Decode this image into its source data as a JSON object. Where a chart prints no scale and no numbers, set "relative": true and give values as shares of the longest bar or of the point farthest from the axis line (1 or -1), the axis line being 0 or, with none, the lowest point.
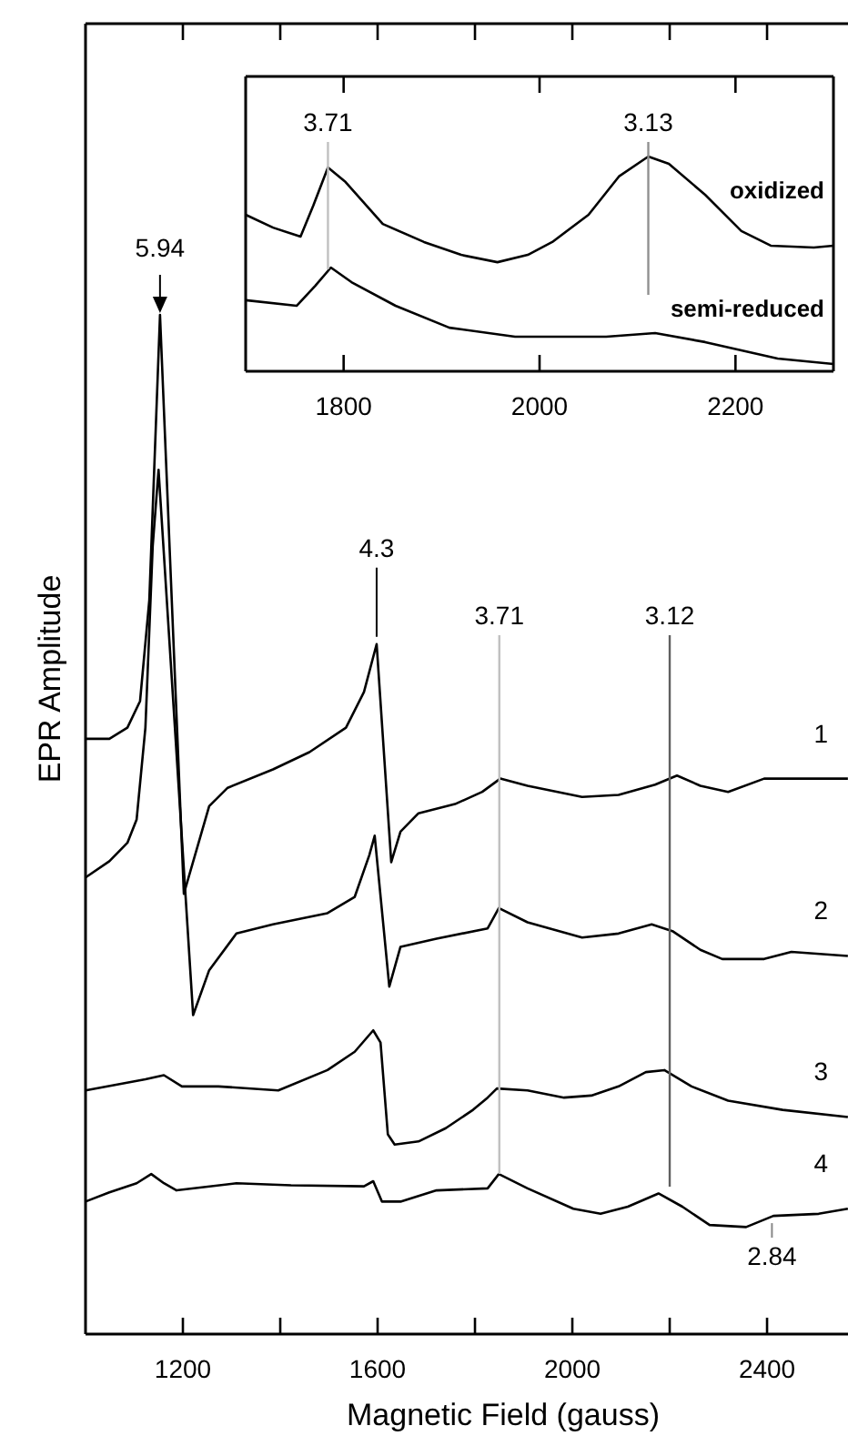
{
  "chart_data": [
    {
      "type": "line",
      "xlabel": "Magnetic Field (gauss)",
      "ylabel": "EPR Amplitude",
      "relative": true,
      "xlim": [
        1000,
        2570
      ],
      "xticks": [
        1200,
        {
          "value": 1400,
          "label": null
        },
        1600,
        {
          "value": 1800,
          "label": null
        },
        2000,
        {
          "value": 2200,
          "label": null
        },
        2400
      ],
      "grid": false,
      "series": [
        {
          "name": "1",
          "color": "#000000",
          "x": [
            1000,
            1049,
            1086,
            1112,
            1131,
            1153,
            1202,
            1254,
            1292,
            1385,
            1460,
            1535,
            1572,
            1598,
            1628,
            1647,
            1684,
            1759,
            1815,
            1852,
            1908,
            2020,
            2095,
            2170,
            2215,
            2263,
            2320,
            2394,
            2566
          ],
          "values": [
            0.584,
            0.584,
            0.595,
            0.621,
            0.72,
            1.0,
            0.432,
            0.518,
            0.536,
            0.554,
            0.571,
            0.595,
            0.63,
            0.677,
            0.463,
            0.493,
            0.511,
            0.52,
            0.532,
            0.545,
            0.538,
            0.527,
            0.529,
            0.539,
            0.548,
            0.538,
            0.532,
            0.545,
            0.545
          ]
        },
        {
          "name": "2",
          "color": "#000000",
          "x": [
            1000,
            1049,
            1086,
            1105,
            1123,
            1138,
            1150,
            1221,
            1254,
            1310,
            1385,
            1497,
            1553,
            1583,
            1594,
            1624,
            1647,
            1721,
            1826,
            1849,
            1908,
            2020,
            2095,
            2163,
            2207,
            2263,
            2308,
            2394,
            2450,
            2566
          ],
          "values": [
            0.448,
            0.464,
            0.482,
            0.505,
            0.595,
            0.773,
            0.848,
            0.313,
            0.357,
            0.393,
            0.402,
            0.413,
            0.429,
            0.47,
            0.489,
            0.341,
            0.38,
            0.388,
            0.398,
            0.418,
            0.404,
            0.389,
            0.393,
            0.402,
            0.395,
            0.377,
            0.368,
            0.368,
            0.375,
            0.371
          ]
        },
        {
          "name": "3",
          "color": "#000000",
          "x": [
            1000,
            1123,
            1161,
            1198,
            1273,
            1396,
            1497,
            1553,
            1591,
            1606,
            1621,
            1635,
            1684,
            1740,
            1796,
            1826,
            1845,
            1908,
            1983,
            2039,
            2095,
            2151,
            2189,
            2245,
            2320,
            2432,
            2566
          ],
          "values": [
            0.239,
            0.25,
            0.254,
            0.243,
            0.243,
            0.239,
            0.259,
            0.277,
            0.298,
            0.286,
            0.196,
            0.186,
            0.189,
            0.202,
            0.22,
            0.232,
            0.241,
            0.239,
            0.232,
            0.234,
            0.243,
            0.257,
            0.259,
            0.243,
            0.229,
            0.22,
            0.213
          ]
        },
        {
          "name": "4",
          "color": "#000000",
          "x": [
            1000,
            1049,
            1105,
            1135,
            1161,
            1187,
            1310,
            1422,
            1572,
            1591,
            1609,
            1647,
            1721,
            1826,
            1849,
            1908,
            2002,
            2058,
            2114,
            2177,
            2226,
            2282,
            2357,
            2413,
            2506,
            2566
          ],
          "values": [
            0.13,
            0.139,
            0.148,
            0.157,
            0.148,
            0.141,
            0.148,
            0.146,
            0.145,
            0.15,
            0.13,
            0.13,
            0.141,
            0.143,
            0.157,
            0.143,
            0.123,
            0.118,
            0.125,
            0.138,
            0.125,
            0.107,
            0.105,
            0.116,
            0.118,
            0.123
          ]
        }
      ],
      "annotations": [
        {
          "text": "5.94",
          "x": 1153,
          "y": 1.0
        },
        {
          "text": "4.3",
          "x": 1598,
          "y": 0.677
        },
        {
          "text": "2.84",
          "x": 2410,
          "y": 0.116
        },
        {
          "text": "3.71",
          "x": 1850
        },
        {
          "text": "3.12",
          "x": 2200
        }
      ]
    },
    {
      "type": "line",
      "relative": true,
      "xlim": [
        1700,
        2300
      ],
      "xticks": [
        1800,
        2000,
        2200
      ],
      "grid": false,
      "series": [
        {
          "name": "oxidized",
          "color": "#000000",
          "x": [
            1700,
            1728,
            1756,
            1769,
            1784,
            1802,
            1840,
            1882,
            1920,
            1957,
            1988,
            2013,
            2050,
            2081,
            2111,
            2132,
            2169,
            2206,
            2236,
            2280,
            2300
          ],
          "values": [
            0.729,
            0.669,
            0.627,
            0.771,
            0.949,
            0.881,
            0.686,
            0.602,
            0.542,
            0.508,
            0.542,
            0.602,
            0.729,
            0.907,
            1.0,
            0.966,
            0.822,
            0.653,
            0.585,
            0.576,
            0.585
          ]
        },
        {
          "name": "semi-reduced",
          "color": "#000000",
          "x": [
            1700,
            1752,
            1771,
            1787,
            1808,
            1853,
            1908,
            1975,
            2068,
            2118,
            2169,
            2243,
            2300
          ],
          "values": [
            0.331,
            0.305,
            0.398,
            0.483,
            0.415,
            0.305,
            0.203,
            0.161,
            0.161,
            0.178,
            0.136,
            0.059,
            0.034
          ]
        }
      ],
      "annotations": [
        {
          "text": "3.71",
          "x": 1784
        },
        {
          "text": "3.13",
          "x": 2111
        }
      ]
    }
  ]
}
